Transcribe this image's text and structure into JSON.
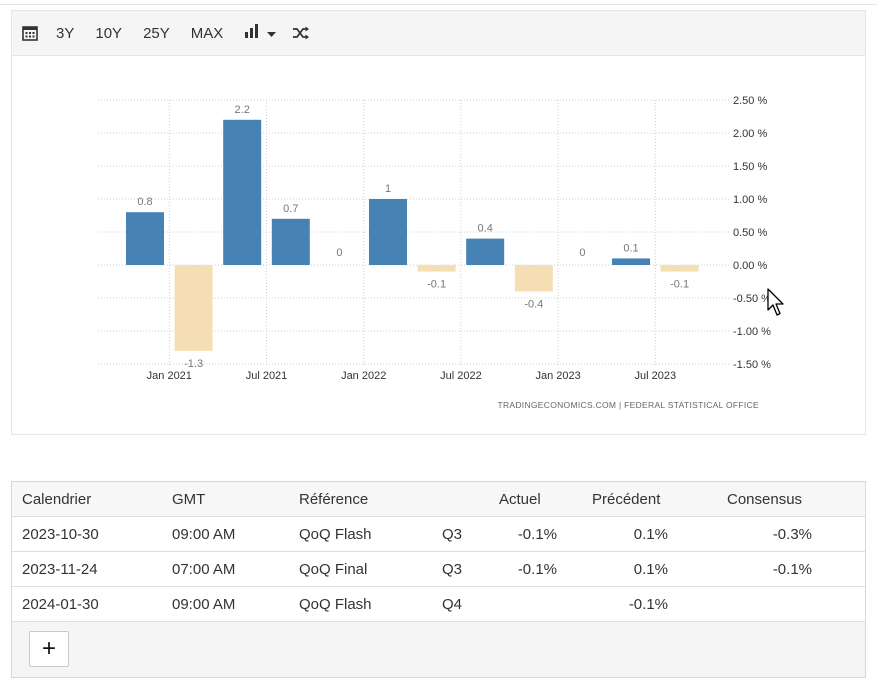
{
  "toolbar": {
    "calendar_icon": "calendar-icon",
    "ranges": [
      "3Y",
      "10Y",
      "25Y",
      "MAX"
    ],
    "chart_type_icon": "bar-chart-icon",
    "dropdown_icon": "caret-down-icon",
    "shuffle_icon": "shuffle-icon"
  },
  "chart_data": {
    "type": "bar",
    "series": [
      {
        "x": [
          "2020-12",
          "2021-03",
          "2021-06",
          "2021-09",
          "2021-12",
          "2022-03",
          "2022-06",
          "2022-09",
          "2022-12",
          "2023-03",
          "2023-06",
          "2023-09"
        ],
        "values": [
          0.8,
          -1.3,
          2.2,
          0.7,
          0,
          1,
          -0.1,
          0.4,
          -0.4,
          0,
          0.1,
          -0.1
        ],
        "labels": [
          "0.8",
          "-1.3",
          "2.2",
          "0.7",
          "0",
          "1",
          "-0.1",
          "0.4",
          "-0.4",
          "0",
          "0.1",
          "-0.1"
        ]
      }
    ],
    "positive_color": "#4682b4",
    "negative_color": "#f5deb3",
    "y_ticks": [
      2.5,
      2.0,
      1.5,
      1.0,
      0.5,
      0.0,
      -0.5,
      -1.0,
      -1.5
    ],
    "y_tick_labels": [
      "2.50 %",
      "2.00 %",
      "1.50 %",
      "1.00 %",
      "0.50 %",
      "0.00 %",
      "-0.50 %",
      "-1.00 %",
      "-1.50 %"
    ],
    "ylim": [
      -1.5,
      2.5
    ],
    "x_ticks": [
      "Jan 2021",
      "Jul 2021",
      "Jan 2022",
      "Jul 2022",
      "Jan 2023",
      "Jul 2023"
    ],
    "y_axis_position": "right",
    "grid": true,
    "source": "TRADINGECONOMICS.COM  |  FEDERAL STATISTICAL OFFICE"
  },
  "table": {
    "headers": {
      "calendar": "Calendrier",
      "gmt": "GMT",
      "reference": "Référence",
      "actual": "Actuel",
      "previous": "Précédent",
      "consensus": "Consensus"
    },
    "rows": [
      {
        "date": "2023-10-30",
        "time": "09:00 AM",
        "ref": "QoQ Flash",
        "period": "Q3",
        "actual": "-0.1%",
        "previous": "0.1%",
        "consensus": "-0.3%"
      },
      {
        "date": "2023-11-24",
        "time": "07:00 AM",
        "ref": "QoQ Final",
        "period": "Q3",
        "actual": "-0.1%",
        "previous": "0.1%",
        "consensus": "-0.1%"
      },
      {
        "date": "2024-01-30",
        "time": "09:00 AM",
        "ref": "QoQ Flash",
        "period": "Q4",
        "actual": "",
        "previous": "-0.1%",
        "consensus": ""
      }
    ],
    "more_label": "+"
  }
}
